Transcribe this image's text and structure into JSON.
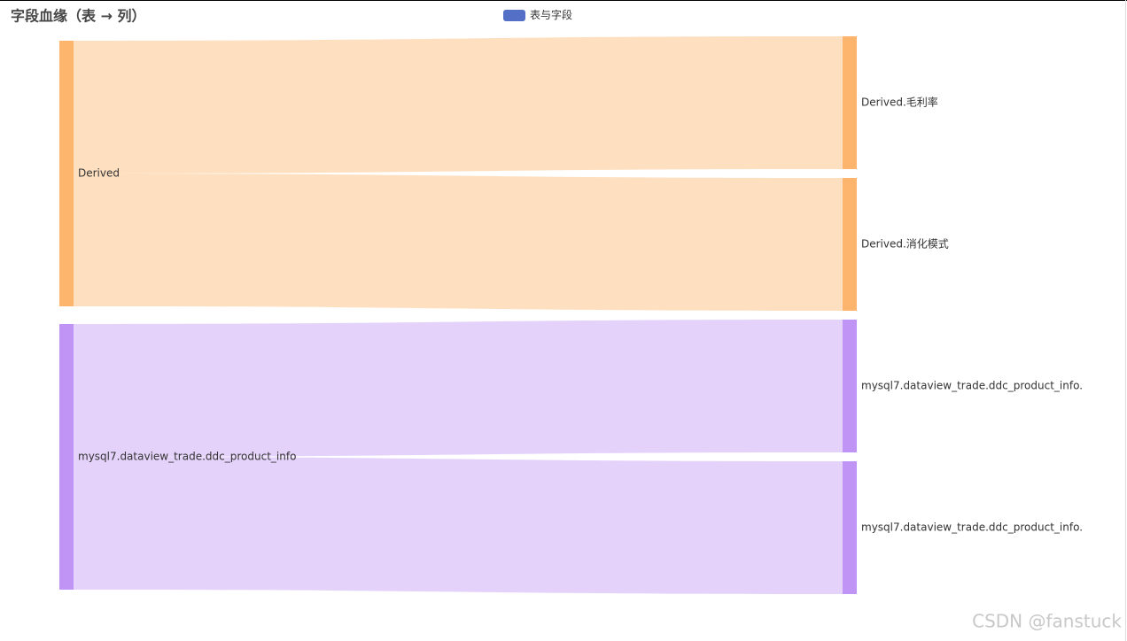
{
  "chart_data": {
    "type": "sankey",
    "title": "字段血缘（表 → 列）",
    "legend": {
      "name": "表与字段",
      "color": "#5470c6"
    },
    "nodes": [
      {
        "name": "Derived",
        "color": "#fdb46c"
      },
      {
        "name": "mysql7.dataview_trade.ddc_product_info",
        "color": "#bf94f5"
      },
      {
        "name": "Derived.毛利率",
        "color": "#fdb46c"
      },
      {
        "name": "Derived.消化模式",
        "color": "#fdb46c"
      },
      {
        "name": "mysql7.dataview_trade.ddc_product_info.",
        "color": "#bf94f5"
      },
      {
        "name": "mysql7.dataview_trade.ddc_product_info.",
        "color": "#bf94f5"
      }
    ],
    "links": [
      {
        "source": 0,
        "target": 2,
        "value": 1
      },
      {
        "source": 0,
        "target": 3,
        "value": 1
      },
      {
        "source": 1,
        "target": 4,
        "value": 1
      },
      {
        "source": 1,
        "target": 5,
        "value": 1
      }
    ],
    "watermark": "CSDN @fanstuck"
  }
}
